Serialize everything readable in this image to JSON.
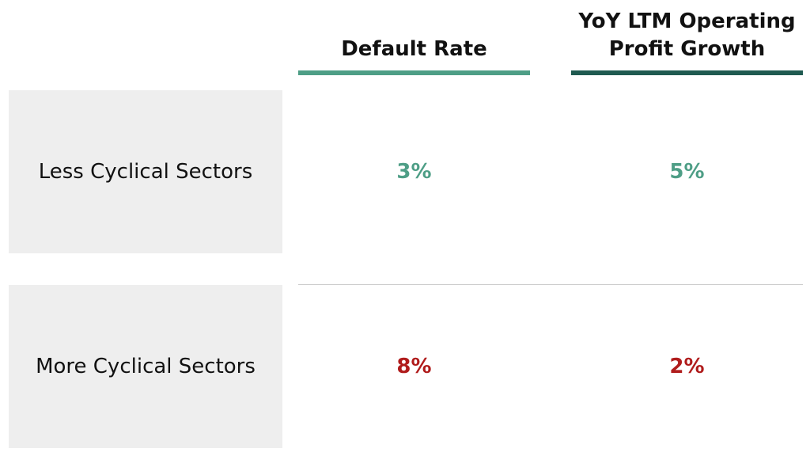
{
  "columns": [
    {
      "label": "Default Rate",
      "bar_color": "#4e9e86"
    },
    {
      "label": "YoY LTM Operating Profit Growth",
      "bar_color": "#1f5a50"
    }
  ],
  "rows": [
    {
      "label": "Less Cyclical Sectors",
      "values": [
        "3%",
        "5%"
      ],
      "value_color": "#4e9e86"
    },
    {
      "label": "More Cyclical Sectors",
      "values": [
        "8%",
        "2%"
      ],
      "value_color": "#b01c1c"
    }
  ]
}
